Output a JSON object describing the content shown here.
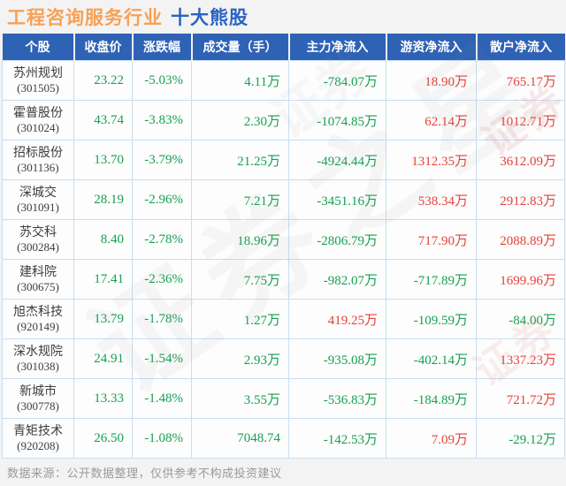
{
  "title": {
    "industry": "工程咨询服务行业",
    "suffix": "十大熊股"
  },
  "watermark": "证券之星",
  "watermark_short": "证券",
  "footer": "数据来源：公开数据整理，仅供参考不构成投资建议",
  "colors": {
    "title_orange": "#f7a155",
    "title_blue": "#2b63c1",
    "header_blue": "#2e62b5",
    "value_green": "#17a052",
    "value_red": "#e6413a"
  },
  "chart_data": {
    "type": "table",
    "columns": [
      "个股",
      "收盘价",
      "涨跌幅",
      "成交量（手）",
      "主力净流入",
      "游资净流入",
      "散户净流入"
    ],
    "rows": [
      {
        "name": "苏州规划",
        "code": "(301505)",
        "close": "23.22",
        "close_color": "g",
        "change": "-5.03%",
        "change_color": "g",
        "volume": "4.11万",
        "volume_color": "g",
        "main": "-784.07万",
        "main_color": "g",
        "hot": "18.90万",
        "hot_color": "r",
        "retail": "765.17万",
        "retail_color": "r"
      },
      {
        "name": "霍普股份",
        "code": "(301024)",
        "close": "43.74",
        "close_color": "g",
        "change": "-3.83%",
        "change_color": "g",
        "volume": "2.30万",
        "volume_color": "g",
        "main": "-1074.85万",
        "main_color": "g",
        "hot": "62.14万",
        "hot_color": "r",
        "retail": "1012.71万",
        "retail_color": "r"
      },
      {
        "name": "招标股份",
        "code": "(301136)",
        "close": "13.70",
        "close_color": "g",
        "change": "-3.79%",
        "change_color": "g",
        "volume": "21.25万",
        "volume_color": "g",
        "main": "-4924.44万",
        "main_color": "g",
        "hot": "1312.35万",
        "hot_color": "r",
        "retail": "3612.09万",
        "retail_color": "r"
      },
      {
        "name": "深城交",
        "code": "(301091)",
        "close": "28.19",
        "close_color": "g",
        "change": "-2.96%",
        "change_color": "g",
        "volume": "7.21万",
        "volume_color": "g",
        "main": "-3451.16万",
        "main_color": "g",
        "hot": "538.34万",
        "hot_color": "r",
        "retail": "2912.83万",
        "retail_color": "r"
      },
      {
        "name": "苏交科",
        "code": "(300284)",
        "close": "8.40",
        "close_color": "g",
        "change": "-2.78%",
        "change_color": "g",
        "volume": "18.96万",
        "volume_color": "g",
        "main": "-2806.79万",
        "main_color": "g",
        "hot": "717.90万",
        "hot_color": "r",
        "retail": "2088.89万",
        "retail_color": "r"
      },
      {
        "name": "建科院",
        "code": "(300675)",
        "close": "17.41",
        "close_color": "g",
        "change": "-2.36%",
        "change_color": "g",
        "volume": "7.75万",
        "volume_color": "g",
        "main": "-982.07万",
        "main_color": "g",
        "hot": "-717.89万",
        "hot_color": "g",
        "retail": "1699.96万",
        "retail_color": "r"
      },
      {
        "name": "旭杰科技",
        "code": "(920149)",
        "close": "13.79",
        "close_color": "g",
        "change": "-1.78%",
        "change_color": "g",
        "volume": "1.27万",
        "volume_color": "g",
        "main": "419.25万",
        "main_color": "r",
        "hot": "-109.59万",
        "hot_color": "g",
        "retail": "-84.00万",
        "retail_color": "g"
      },
      {
        "name": "深水规院",
        "code": "(301038)",
        "close": "24.91",
        "close_color": "g",
        "change": "-1.54%",
        "change_color": "g",
        "volume": "2.93万",
        "volume_color": "g",
        "main": "-935.08万",
        "main_color": "g",
        "hot": "-402.14万",
        "hot_color": "g",
        "retail": "1337.23万",
        "retail_color": "r"
      },
      {
        "name": "新城市",
        "code": "(300778)",
        "close": "13.33",
        "close_color": "g",
        "change": "-1.48%",
        "change_color": "g",
        "volume": "3.55万",
        "volume_color": "g",
        "main": "-536.83万",
        "main_color": "g",
        "hot": "-184.89万",
        "hot_color": "g",
        "retail": "721.72万",
        "retail_color": "r"
      },
      {
        "name": "青矩技术",
        "code": "(920208)",
        "close": "26.50",
        "close_color": "g",
        "change": "-1.08%",
        "change_color": "g",
        "volume": "7048.74",
        "volume_color": "g",
        "main": "-142.53万",
        "main_color": "g",
        "hot": "7.09万",
        "hot_color": "r",
        "retail": "-29.12万",
        "retail_color": "g"
      }
    ]
  }
}
